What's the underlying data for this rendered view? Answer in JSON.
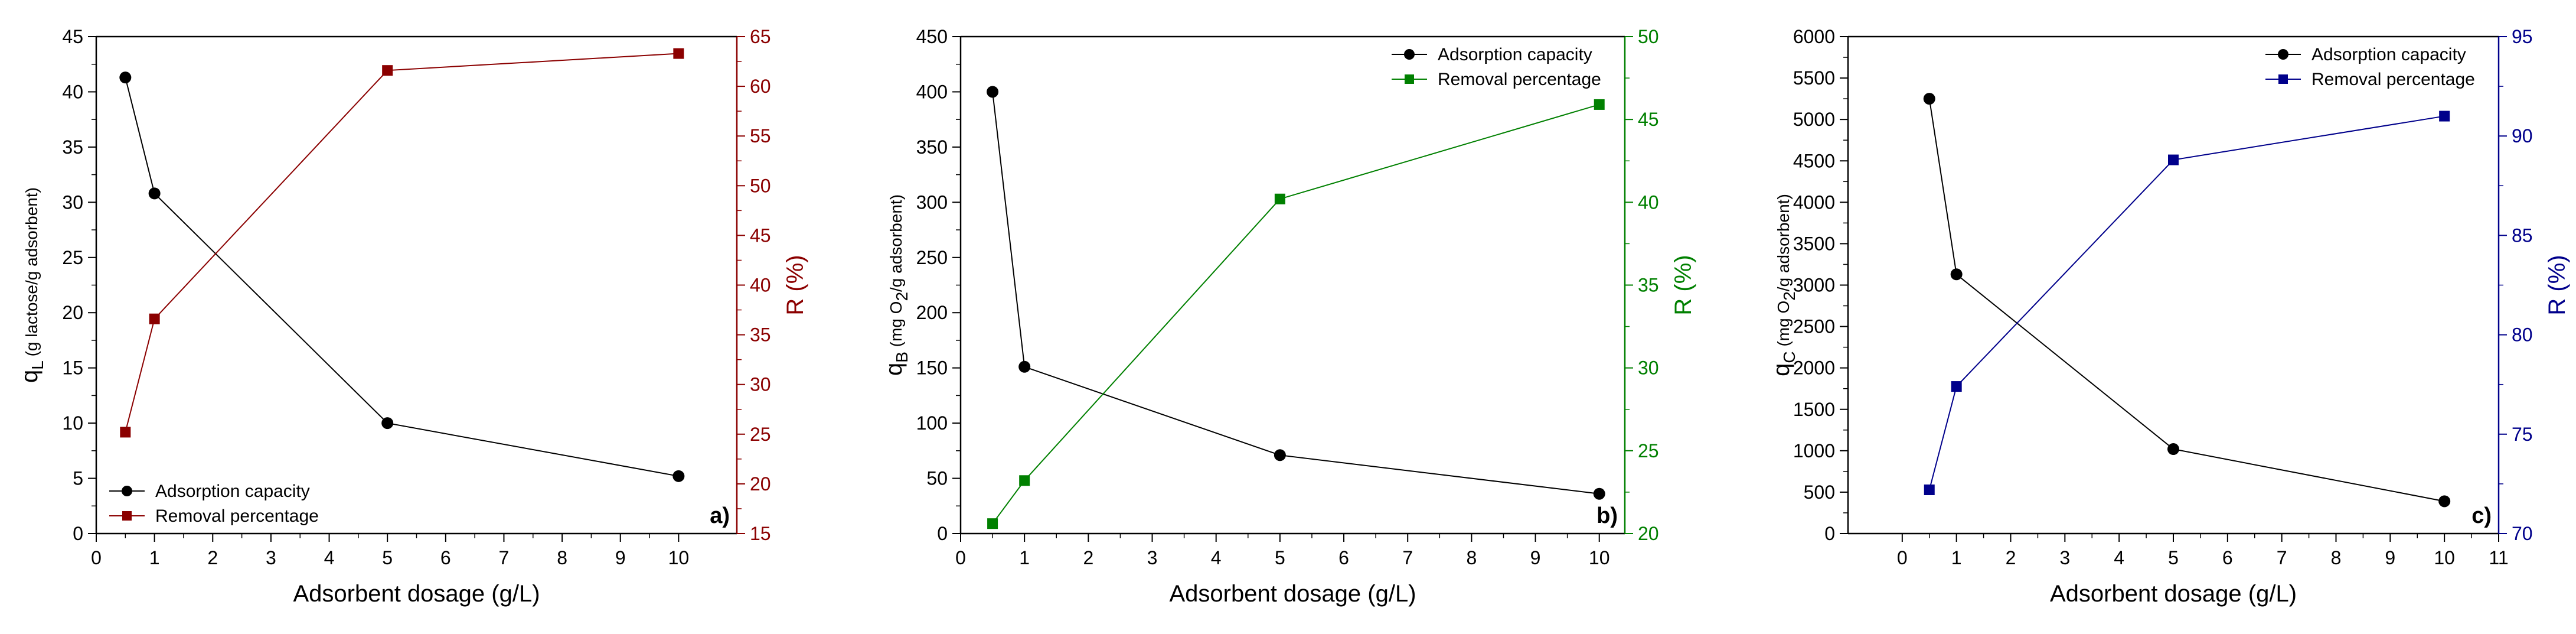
{
  "chart_data": [
    {
      "type": "line",
      "panel_label": "a)",
      "x": [
        0.5,
        1,
        5,
        10
      ],
      "xlabel": "Adsorbent dosage (g/L)",
      "xlim": [
        0,
        11
      ],
      "xticks": [
        0,
        1,
        2,
        3,
        4,
        5,
        6,
        7,
        8,
        9,
        10
      ],
      "ylabel_left": {
        "main": "q",
        "sub": "L",
        "rest": " (g lactose/g adsorbent)"
      },
      "ylim_left": [
        0,
        45
      ],
      "yticks_left": [
        0,
        5,
        10,
        15,
        20,
        25,
        30,
        35,
        40,
        45
      ],
      "ylabel_right": "R (%)",
      "ylim_right": [
        15,
        65
      ],
      "yticks_right": [
        15,
        20,
        25,
        30,
        35,
        40,
        45,
        50,
        55,
        60,
        65
      ],
      "right_axis_color": "#8B0000",
      "legend_position": "bottom-left",
      "grid": false,
      "series": [
        {
          "name": "Adsorption capacity",
          "axis": "left",
          "marker": "circle",
          "color": "#000000",
          "values": [
            41.3,
            30.8,
            10.0,
            5.2
          ]
        },
        {
          "name": "Removal percentage",
          "axis": "right",
          "marker": "square",
          "color": "#8B0000",
          "values": [
            25.2,
            36.6,
            61.6,
            63.3
          ]
        }
      ]
    },
    {
      "type": "line",
      "panel_label": "b)",
      "x": [
        0.5,
        1,
        5,
        10
      ],
      "xlabel": "Adsorbent dosage (g/L)",
      "xlim": [
        0,
        10.4
      ],
      "xticks": [
        0,
        1,
        2,
        3,
        4,
        5,
        6,
        7,
        8,
        9,
        10
      ],
      "ylabel_left": {
        "main": "q",
        "sub": "B",
        "rest_pre": " (mg O",
        "sub2": "2",
        "rest": "/g adsorbent)"
      },
      "ylim_left": [
        0,
        450
      ],
      "yticks_left": [
        0,
        50,
        100,
        150,
        200,
        250,
        300,
        350,
        400,
        450
      ],
      "ylabel_right": "R (%)",
      "ylim_right": [
        20,
        50
      ],
      "yticks_right": [
        20,
        25,
        30,
        35,
        40,
        45,
        50
      ],
      "right_axis_color": "#008000",
      "legend_position": "top-right",
      "grid": false,
      "series": [
        {
          "name": "Adsorption capacity",
          "axis": "left",
          "marker": "circle",
          "color": "#000000",
          "values": [
            400,
            151,
            71,
            36
          ]
        },
        {
          "name": "Removal percentage",
          "axis": "right",
          "marker": "square",
          "color": "#008000",
          "values": [
            20.6,
            23.2,
            40.2,
            45.9
          ]
        }
      ]
    },
    {
      "type": "line",
      "panel_label": "c)",
      "x": [
        0.5,
        1,
        5,
        10
      ],
      "xlabel": "Adsorbent dosage (g/L)",
      "xlim": [
        -1,
        11
      ],
      "xticks": [
        0,
        1,
        2,
        3,
        4,
        5,
        6,
        7,
        8,
        9,
        10,
        11
      ],
      "ylabel_left": {
        "main": "q",
        "sub": "C",
        "rest_pre": " (mg O",
        "sub2": "2",
        "rest": "/g adsorbent)"
      },
      "ylim_left": [
        0,
        6000
      ],
      "yticks_left": [
        0,
        500,
        1000,
        1500,
        2000,
        2500,
        3000,
        3500,
        4000,
        4500,
        5000,
        5500,
        6000
      ],
      "ylabel_right": "R (%)",
      "ylim_right": [
        70,
        95
      ],
      "yticks_right": [
        70,
        75,
        80,
        85,
        90,
        95
      ],
      "right_axis_color": "#00008B",
      "legend_position": "top-right",
      "grid": false,
      "series": [
        {
          "name": "Adsorption capacity",
          "axis": "left",
          "marker": "circle",
          "color": "#000000",
          "values": [
            5250,
            3130,
            1020,
            390
          ]
        },
        {
          "name": "Removal percentage",
          "axis": "right",
          "marker": "square",
          "color": "#00008B",
          "values": [
            72.2,
            77.4,
            88.8,
            91.0
          ]
        }
      ]
    }
  ]
}
